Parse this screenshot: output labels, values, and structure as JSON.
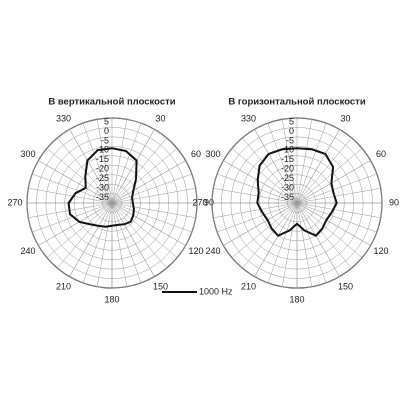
{
  "chart_data": [
    {
      "type": "polar",
      "title": "В вертикальной плоскости",
      "theta": [
        0,
        15,
        30,
        45,
        60,
        75,
        90,
        105,
        120,
        135,
        150,
        165,
        180,
        195,
        210,
        225,
        240,
        255,
        270,
        285,
        300,
        315,
        330,
        345
      ],
      "series": [
        {
          "name": "1000 Hz",
          "color": "#111111",
          "values": [
            -11,
            -11.5,
            -14,
            -22,
            -27,
            -29,
            -29,
            -28,
            -27,
            -26,
            -27,
            -28,
            -28,
            -27,
            -26,
            -24,
            -20,
            -17,
            -17,
            -20,
            -24,
            -20,
            -14,
            -11
          ]
        }
      ],
      "rlim": [
        -40,
        5
      ],
      "rticks": [
        5,
        0,
        -5,
        -10,
        -15,
        -20,
        -25,
        -30,
        -35
      ],
      "thetaticks": [
        30,
        60,
        90,
        120,
        150,
        180,
        210,
        240,
        270,
        300,
        330
      ],
      "grid": true
    },
    {
      "type": "polar",
      "title": "В горизонтальной плоскости",
      "theta": [
        0,
        15,
        30,
        45,
        60,
        75,
        90,
        105,
        120,
        135,
        150,
        165,
        180,
        195,
        210,
        225,
        240,
        255,
        270,
        285,
        300,
        315,
        330,
        345
      ],
      "series": [
        {
          "color": "#111111",
          "values": [
            -11,
            -10.5,
            -10,
            -13,
            -19,
            -20,
            -19,
            -21,
            -22,
            -21,
            -20,
            -25,
            -29,
            -25,
            -20,
            -21,
            -22,
            -21,
            -19,
            -19,
            -16,
            -12,
            -10,
            -10.5
          ]
        }
      ],
      "rlim": [
        -40,
        5
      ],
      "rticks": [
        5,
        0,
        -5,
        -10,
        -15,
        -20,
        -25,
        -30,
        -35
      ],
      "thetaticks": [
        30,
        60,
        90,
        120,
        150,
        180,
        210,
        240,
        270,
        300,
        330
      ],
      "grid": true
    }
  ]
}
